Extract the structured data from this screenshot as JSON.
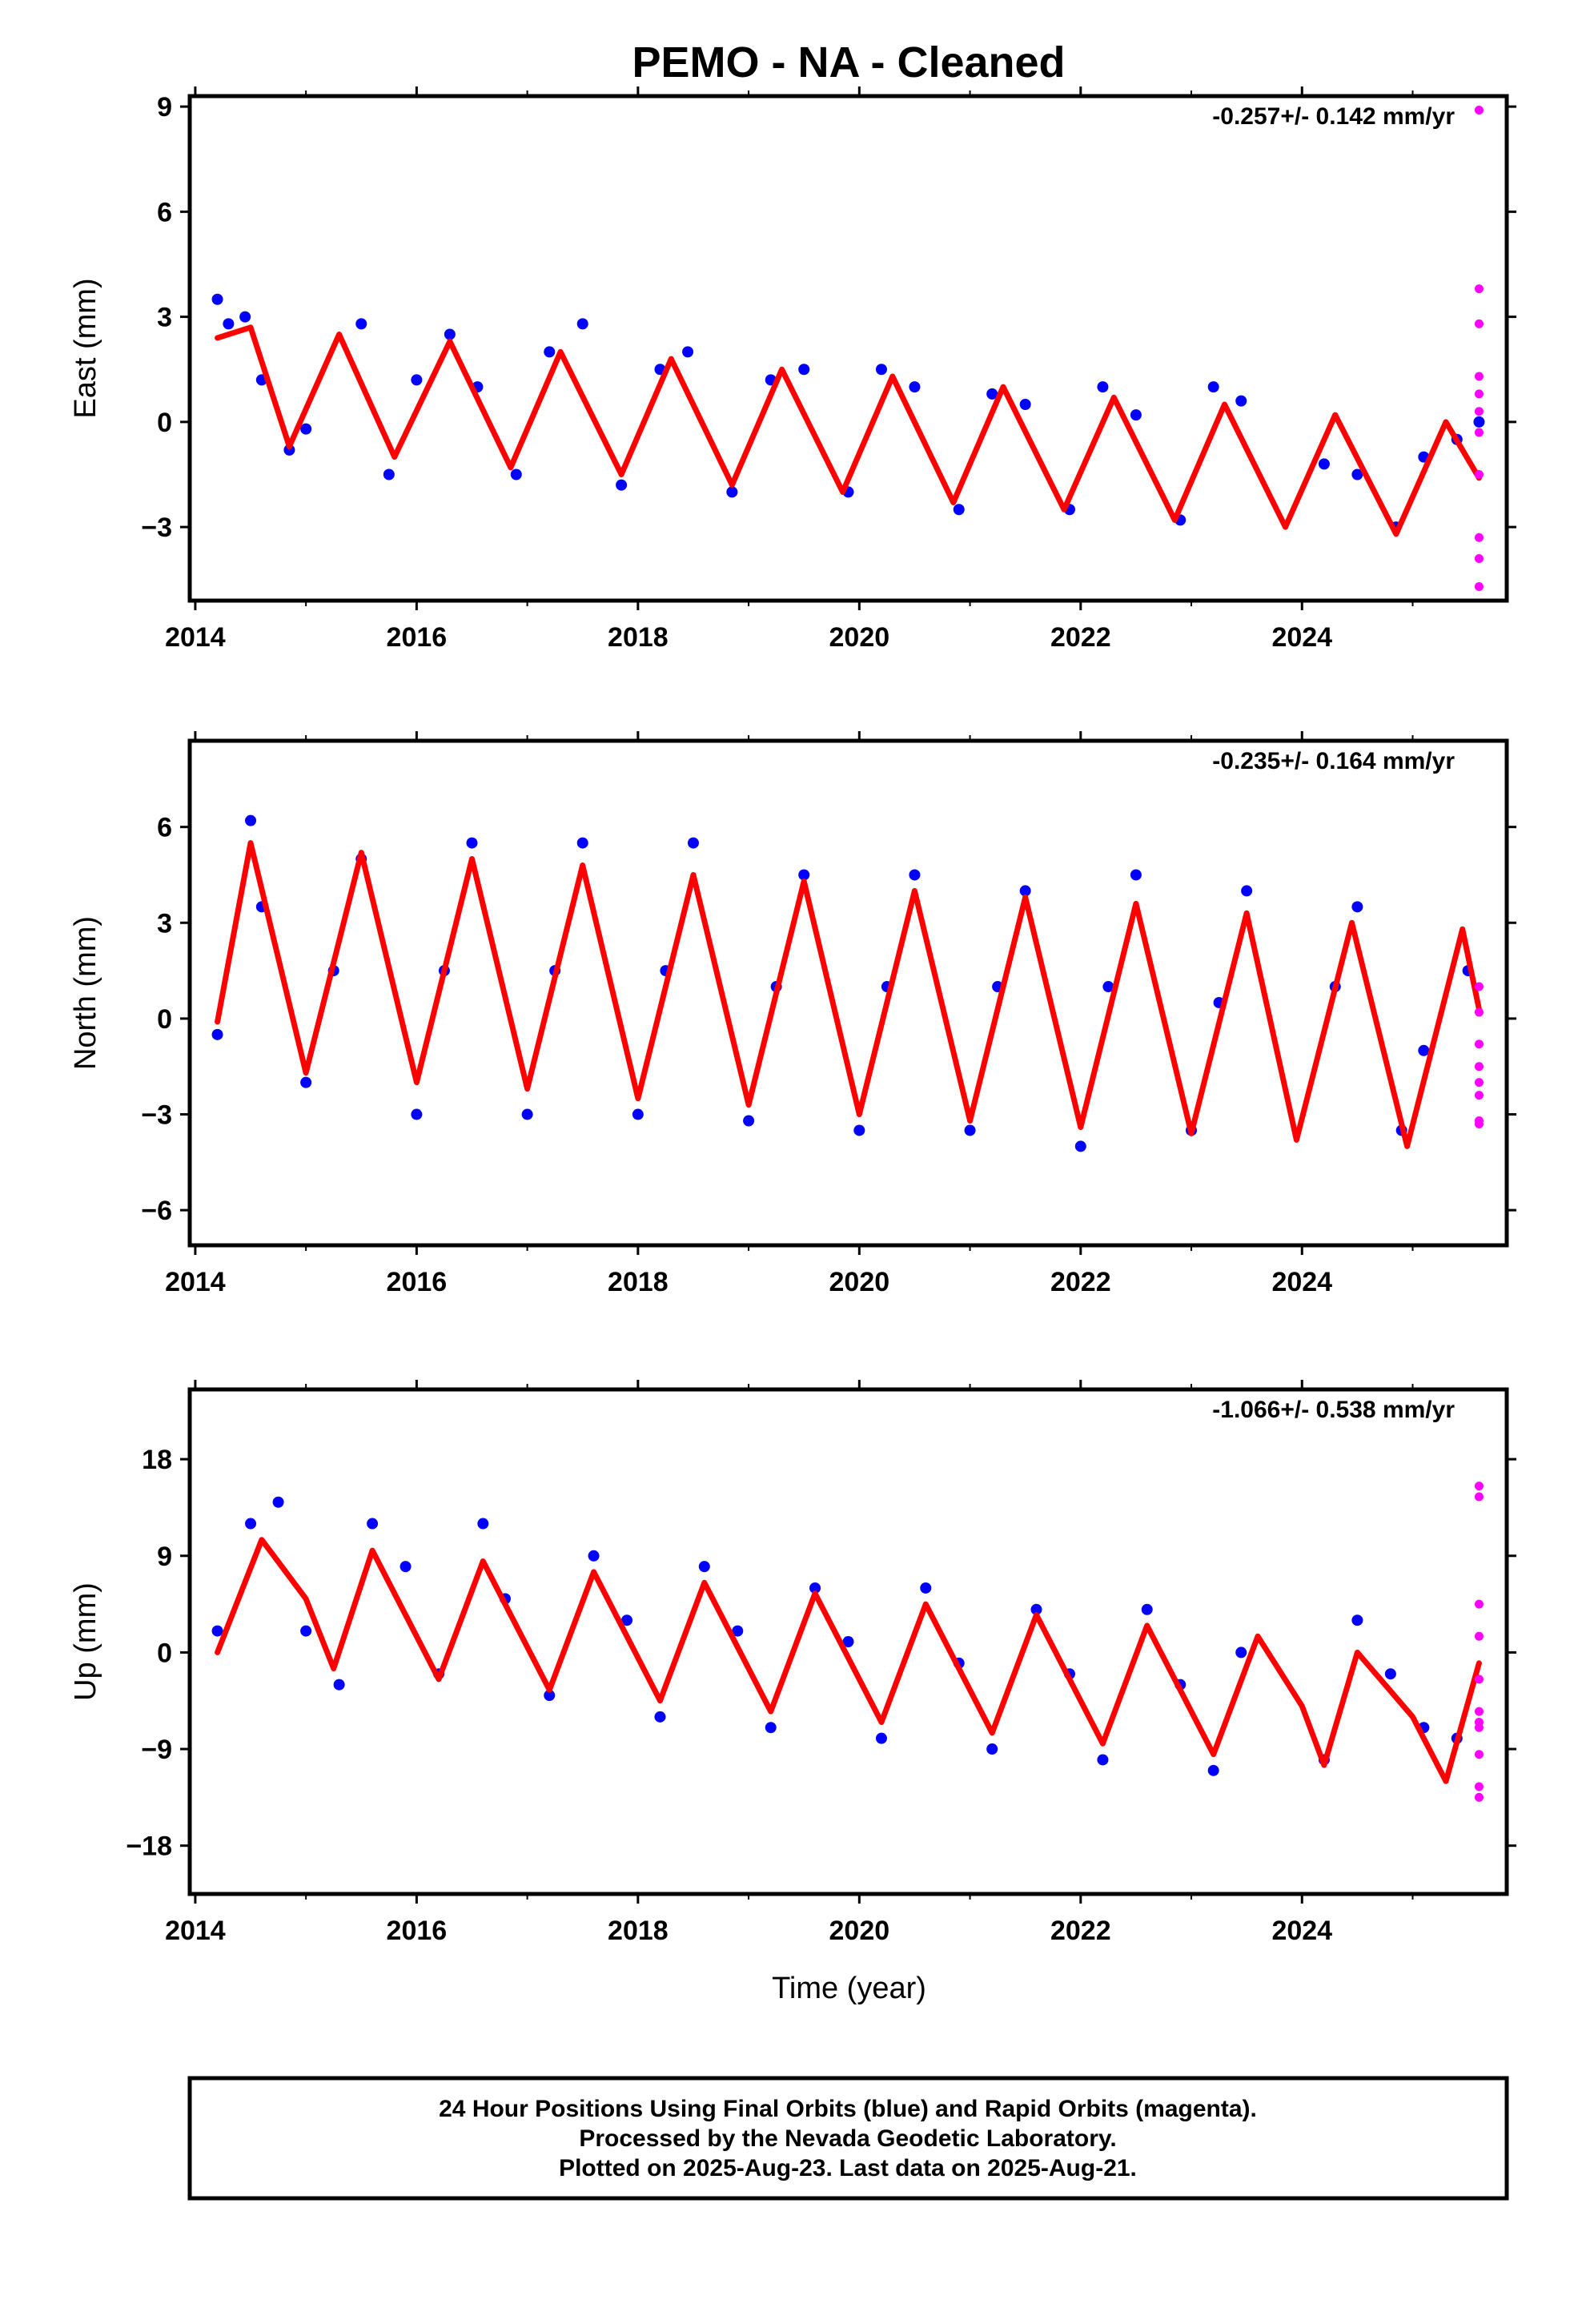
{
  "title": "PEMO  - NA - Cleaned",
  "colors": {
    "final": "#0000ff",
    "rapid": "#ff00ff",
    "model": "#ff0000"
  },
  "footer": {
    "line1": "24 Hour Positions Using Final Orbits (blue) and Rapid Orbits (magenta).",
    "line2": "Processed by the Nevada Geodetic Laboratory.",
    "line3": "Plotted on 2025-Aug-23. Last data on 2025-Aug-21."
  },
  "chart_data": [
    {
      "type": "scatter",
      "component": "east",
      "ylabel": "East (mm)",
      "xlabel": "",
      "rate_label": "-0.257+/- 0.142 mm/yr",
      "xlim": [
        2013.95,
        2025.85
      ],
      "ylim": [
        -5.1,
        9.3
      ],
      "xticks": [
        "2014",
        "2016",
        "2018",
        "2020",
        "2022",
        "2024"
      ],
      "xtick_values": [
        2014,
        2016,
        2018,
        2020,
        2022,
        2024
      ],
      "yticks": [
        "9",
        "6",
        "3",
        "0",
        "-3"
      ],
      "ytick_values": [
        9,
        6,
        3,
        0,
        -3
      ],
      "model": {
        "x": [
          2014.2,
          2014.5,
          2014.85,
          2015.3,
          2015.8,
          2016.3,
          2016.85,
          2017.3,
          2017.85,
          2018.3,
          2018.85,
          2019.3,
          2019.85,
          2020.3,
          2020.85,
          2021.3,
          2021.85,
          2022.3,
          2022.85,
          2023.3,
          2023.85,
          2024.3,
          2024.85,
          2025.3,
          2025.6
        ],
        "y": [
          2.4,
          2.7,
          -0.7,
          2.5,
          -1.0,
          2.3,
          -1.3,
          2.0,
          -1.5,
          1.8,
          -1.8,
          1.5,
          -2.0,
          1.3,
          -2.3,
          1.0,
          -2.5,
          0.7,
          -2.8,
          0.5,
          -3.0,
          0.2,
          -3.2,
          0.0,
          -1.6
        ]
      },
      "final": {
        "x": [
          2014.2,
          2014.3,
          2014.45,
          2014.6,
          2014.85,
          2015.0,
          2015.5,
          2015.75,
          2016.0,
          2016.3,
          2016.55,
          2016.9,
          2017.2,
          2017.5,
          2017.85,
          2018.2,
          2018.45,
          2018.85,
          2019.2,
          2019.5,
          2019.9,
          2020.2,
          2020.5,
          2020.9,
          2021.2,
          2021.5,
          2021.9,
          2022.2,
          2022.5,
          2022.9,
          2023.2,
          2023.45,
          2024.2,
          2024.5,
          2024.85,
          2025.1,
          2025.4,
          2025.6
        ],
        "y": [
          3.5,
          2.8,
          3.0,
          1.2,
          -0.8,
          -0.2,
          2.8,
          -1.5,
          1.2,
          2.5,
          1.0,
          -1.5,
          2.0,
          2.8,
          -1.8,
          1.5,
          2.0,
          -2.0,
          1.2,
          1.5,
          -2.0,
          1.5,
          1.0,
          -2.5,
          0.8,
          0.5,
          -2.5,
          1.0,
          0.2,
          -2.8,
          1.0,
          0.6,
          -1.2,
          -1.5,
          -3.0,
          -1.0,
          -0.5,
          0.0
        ]
      },
      "rapid": {
        "x": [
          2025.6,
          2025.6,
          2025.6,
          2025.6,
          2025.6,
          2025.6,
          2025.6,
          2025.6,
          2025.6,
          2025.6,
          2025.6
        ],
        "y": [
          8.9,
          3.8,
          2.8,
          1.3,
          0.8,
          0.3,
          -0.3,
          -1.5,
          -3.3,
          -3.9,
          -4.7
        ]
      }
    },
    {
      "type": "scatter",
      "component": "north",
      "ylabel": "North (mm)",
      "xlabel": "",
      "rate_label": "-0.235+/- 0.164 mm/yr",
      "xlim": [
        2013.95,
        2025.85
      ],
      "ylim": [
        -7.1,
        8.7
      ],
      "xticks": [
        "2014",
        "2016",
        "2018",
        "2020",
        "2022",
        "2024"
      ],
      "xtick_values": [
        2014,
        2016,
        2018,
        2020,
        2022,
        2024
      ],
      "yticks": [
        "6",
        "3",
        "0",
        "-3",
        "-6"
      ],
      "ytick_values": [
        6,
        3,
        0,
        -3,
        -6
      ],
      "model": {
        "x": [
          2014.2,
          2014.5,
          2015.0,
          2015.5,
          2016.0,
          2016.5,
          2017.0,
          2017.5,
          2018.0,
          2018.5,
          2019.0,
          2019.5,
          2020.0,
          2020.5,
          2021.0,
          2021.5,
          2022.0,
          2022.5,
          2023.0,
          2023.5,
          2023.95,
          2024.45,
          2024.95,
          2025.45,
          2025.6
        ],
        "y": [
          -0.1,
          5.5,
          -1.7,
          5.2,
          -2.0,
          5.0,
          -2.2,
          4.8,
          -2.5,
          4.5,
          -2.7,
          4.3,
          -3.0,
          4.0,
          -3.2,
          3.8,
          -3.4,
          3.6,
          -3.6,
          3.3,
          -3.8,
          3.0,
          -4.0,
          2.8,
          0.3
        ]
      },
      "final": {
        "x": [
          2014.2,
          2014.5,
          2014.6,
          2015.0,
          2015.25,
          2015.5,
          2016.0,
          2016.25,
          2016.5,
          2017.0,
          2017.25,
          2017.5,
          2018.0,
          2018.25,
          2018.5,
          2019.0,
          2019.25,
          2019.5,
          2020.0,
          2020.25,
          2020.5,
          2021.0,
          2021.25,
          2021.5,
          2022.0,
          2022.25,
          2022.5,
          2023.0,
          2023.25,
          2023.5,
          2024.3,
          2024.5,
          2024.9,
          2025.1,
          2025.5
        ],
        "y": [
          -0.5,
          6.2,
          3.5,
          -2.0,
          1.5,
          5.0,
          -3.0,
          1.5,
          5.5,
          -3.0,
          1.5,
          5.5,
          -3.0,
          1.5,
          5.5,
          -3.2,
          1.0,
          4.5,
          -3.5,
          1.0,
          4.5,
          -3.5,
          1.0,
          4.0,
          -4.0,
          1.0,
          4.5,
          -3.5,
          0.5,
          4.0,
          1.0,
          3.5,
          -3.5,
          -1.0,
          1.5
        ]
      },
      "rapid": {
        "x": [
          2025.6,
          2025.6,
          2025.6,
          2025.6,
          2025.6,
          2025.6,
          2025.6,
          2025.6
        ],
        "y": [
          1.0,
          0.2,
          -0.8,
          -1.5,
          -2.0,
          -2.4,
          -3.2,
          -3.3
        ]
      }
    },
    {
      "type": "scatter",
      "component": "up",
      "ylabel": "Up (mm)",
      "xlabel": "Time (year)",
      "rate_label": "-1.066+/- 0.538 mm/yr",
      "xlim": [
        2013.95,
        2025.85
      ],
      "ylim": [
        -22.5,
        24.5
      ],
      "xticks": [
        "2014",
        "2016",
        "2018",
        "2020",
        "2022",
        "2024"
      ],
      "xtick_values": [
        2014,
        2016,
        2018,
        2020,
        2022,
        2024
      ],
      "yticks": [
        "18",
        "9",
        "0",
        "-9",
        "-18"
      ],
      "ytick_values": [
        18,
        9,
        0,
        -9,
        -18
      ],
      "model": {
        "x": [
          2014.2,
          2014.6,
          2015.0,
          2015.25,
          2015.6,
          2016.2,
          2016.6,
          2017.2,
          2017.6,
          2018.2,
          2018.6,
          2019.2,
          2019.6,
          2020.2,
          2020.6,
          2021.2,
          2021.6,
          2022.2,
          2022.6,
          2023.2,
          2023.6,
          2024.0,
          2024.2,
          2024.5,
          2025.0,
          2025.3,
          2025.6
        ],
        "y": [
          0.0,
          10.5,
          5.0,
          -1.5,
          9.5,
          -2.5,
          8.5,
          -3.5,
          7.5,
          -4.5,
          6.5,
          -5.5,
          5.5,
          -6.5,
          4.5,
          -7.5,
          3.5,
          -8.5,
          2.5,
          -9.5,
          1.5,
          -5.0,
          -10.5,
          0.0,
          -6.0,
          -12.0,
          -1.0
        ]
      },
      "final": {
        "x": [
          2014.2,
          2014.5,
          2014.75,
          2015.0,
          2015.3,
          2015.6,
          2015.9,
          2016.2,
          2016.6,
          2016.8,
          2017.2,
          2017.6,
          2017.9,
          2018.2,
          2018.6,
          2018.9,
          2019.2,
          2019.6,
          2019.9,
          2020.2,
          2020.6,
          2020.9,
          2021.2,
          2021.6,
          2021.9,
          2022.2,
          2022.6,
          2022.9,
          2023.2,
          2023.45,
          2024.2,
          2024.5,
          2024.8,
          2025.1,
          2025.4
        ],
        "y": [
          2.0,
          12.0,
          14.0,
          2.0,
          -3.0,
          12.0,
          8.0,
          -2.0,
          12.0,
          5.0,
          -4.0,
          9.0,
          3.0,
          -6.0,
          8.0,
          2.0,
          -7.0,
          6.0,
          1.0,
          -8.0,
          6.0,
          -1.0,
          -9.0,
          4.0,
          -2.0,
          -10.0,
          4.0,
          -3.0,
          -11.0,
          0.0,
          -10.0,
          3.0,
          -2.0,
          -7.0,
          -8.0
        ]
      },
      "rapid": {
        "x": [
          2025.6,
          2025.6,
          2025.6,
          2025.6,
          2025.6,
          2025.6,
          2025.6,
          2025.6,
          2025.6,
          2025.6,
          2025.6
        ],
        "y": [
          15.5,
          14.5,
          4.5,
          1.5,
          -2.5,
          -5.5,
          -6.5,
          -7.0,
          -9.5,
          -12.5,
          -13.5
        ]
      }
    }
  ]
}
